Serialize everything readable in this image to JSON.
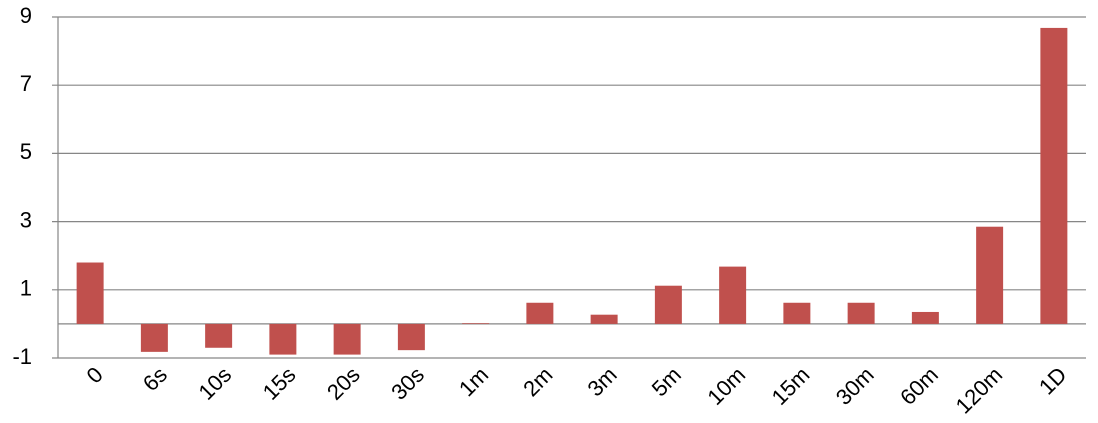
{
  "chart_data": {
    "type": "bar",
    "categories": [
      "0",
      "6s",
      "10s",
      "15s",
      "20s",
      "30s",
      "1m",
      "2m",
      "3m",
      "5m",
      "10m",
      "15m",
      "30m",
      "60m",
      "120m",
      "1D"
    ],
    "values": [
      1.8,
      -0.82,
      -0.7,
      -0.9,
      -0.9,
      -0.77,
      0.02,
      0.62,
      0.27,
      1.12,
      1.68,
      0.62,
      0.62,
      0.35,
      2.85,
      8.68
    ],
    "color": "#c0504d",
    "ylim": [
      -1,
      9
    ],
    "yticks": [
      -1,
      1,
      3,
      5,
      7,
      9
    ],
    "grid": true
  }
}
